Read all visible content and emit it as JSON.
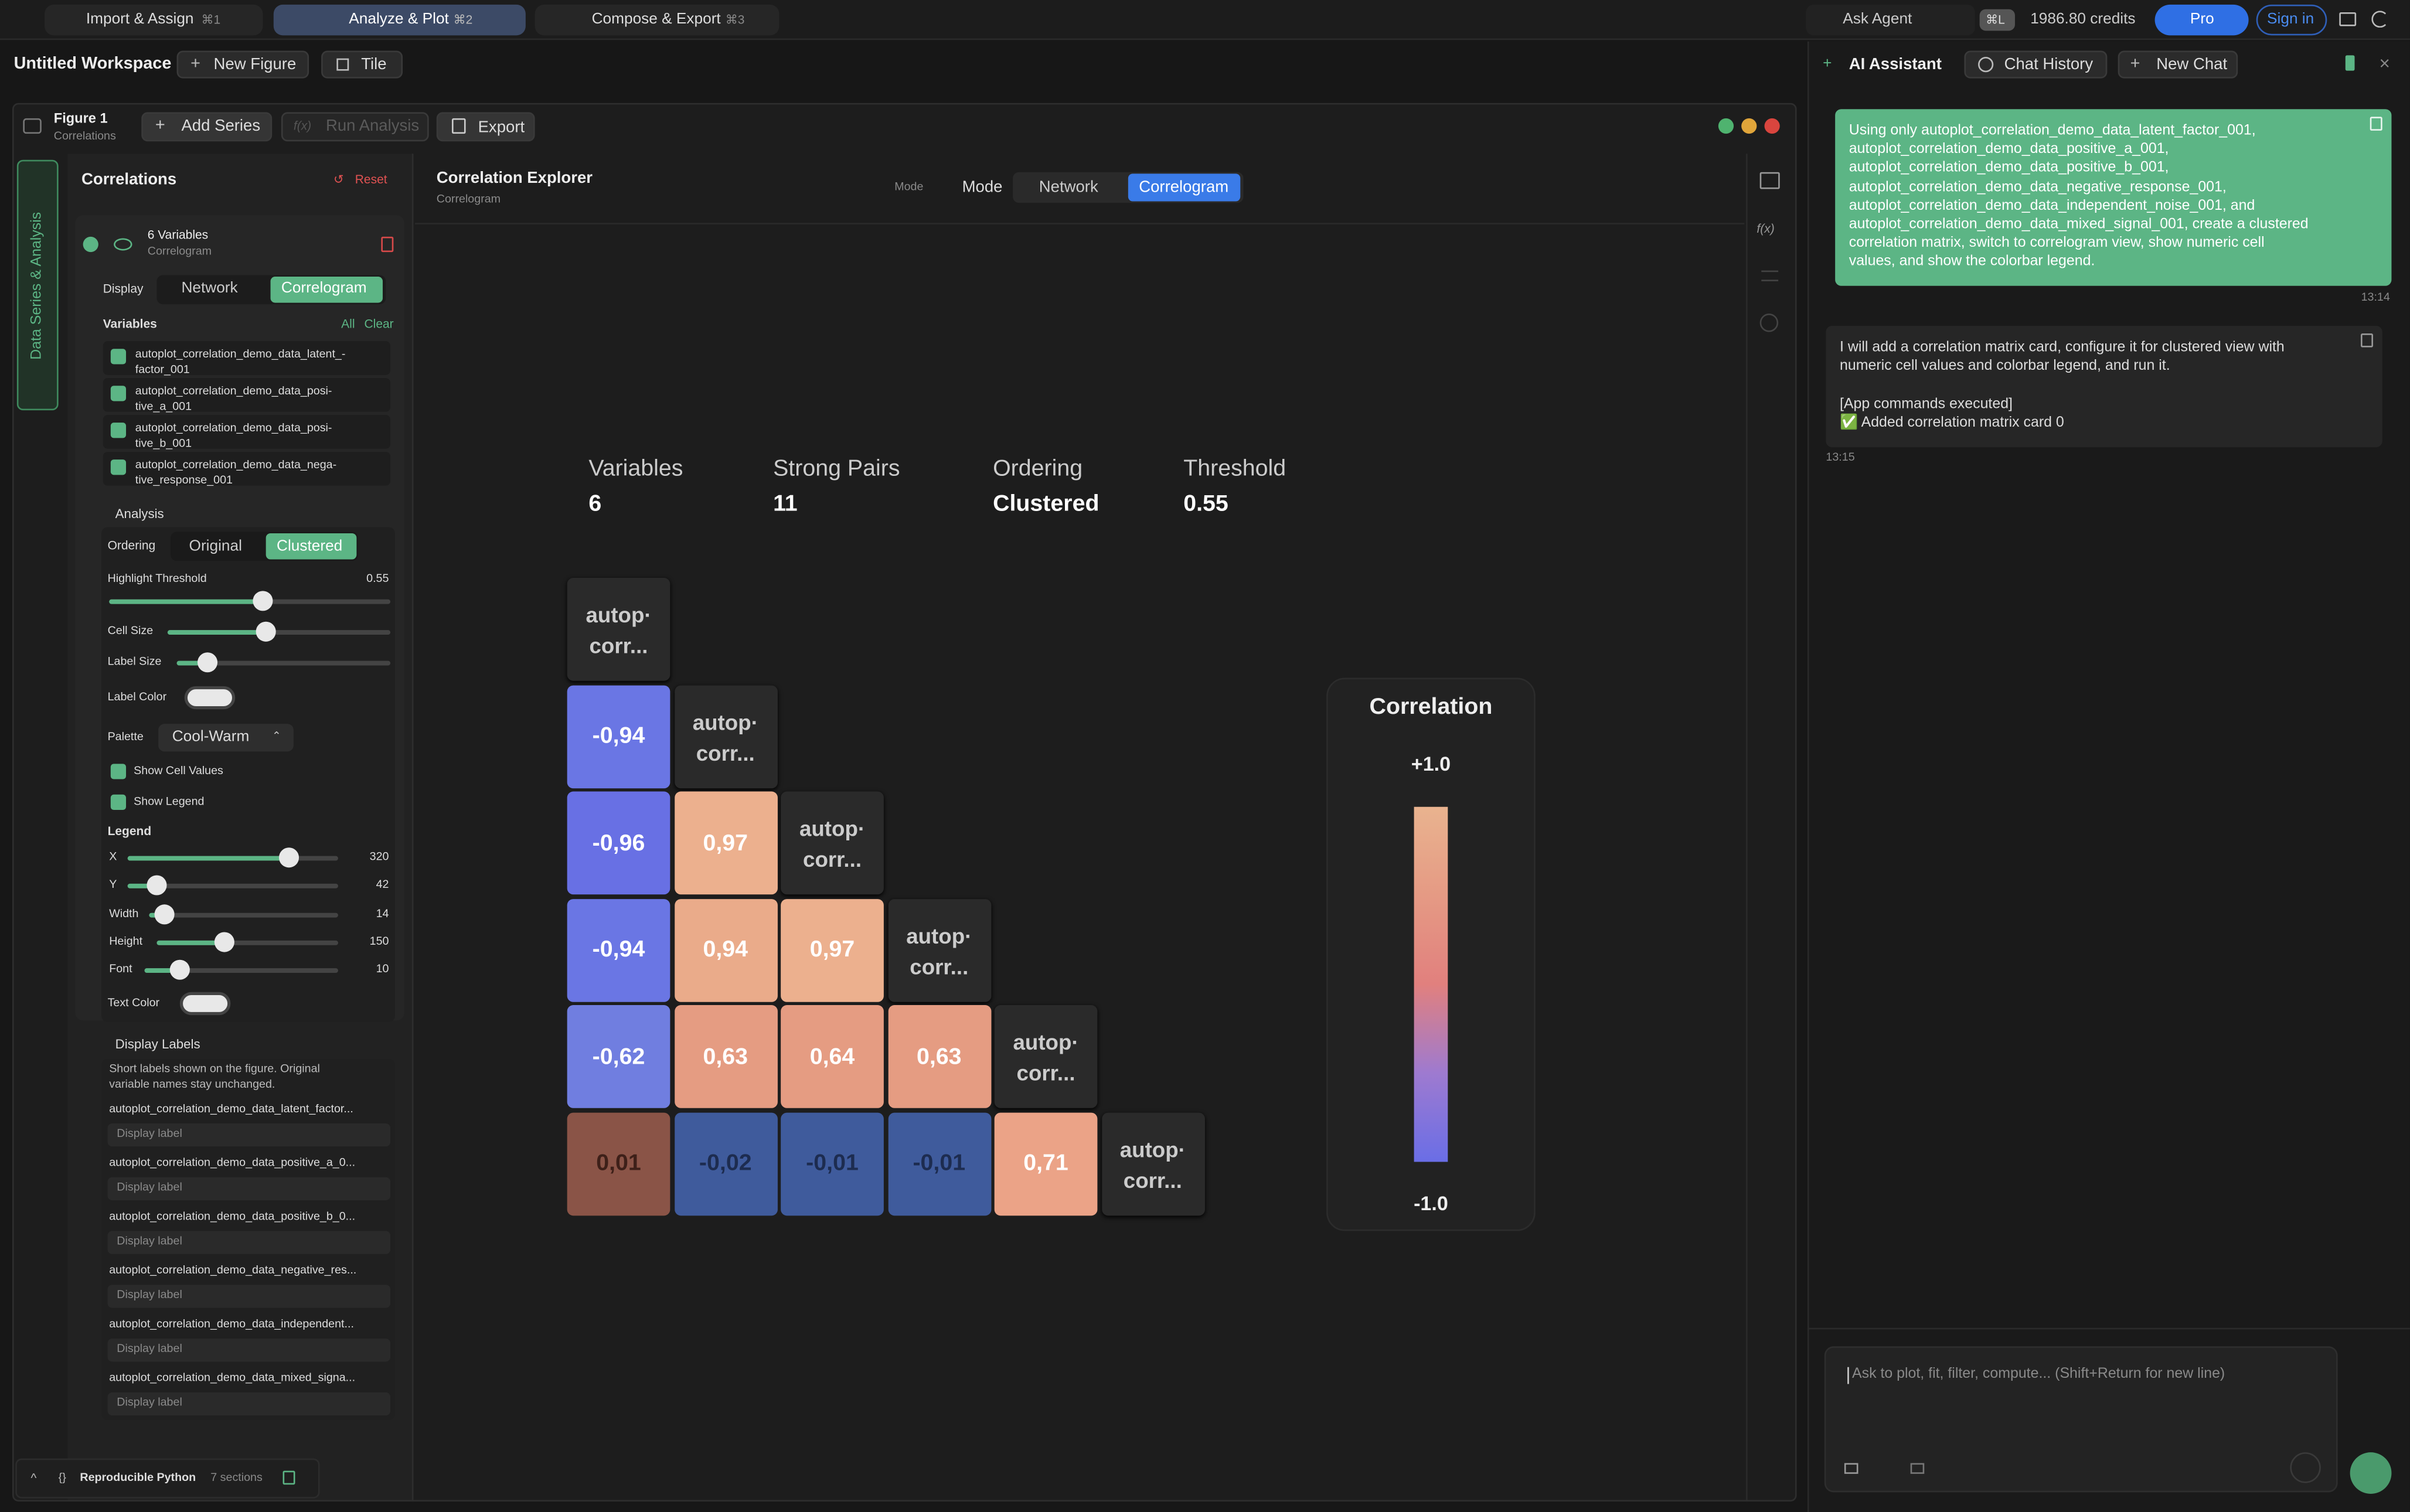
{
  "top_bar": {
    "tabs": [
      {
        "label": "Import & Assign",
        "shortcut": "⌘1"
      },
      {
        "label": "Analyze & Plot",
        "shortcut": "⌘2"
      },
      {
        "label": "Compose & Export",
        "shortcut": "⌘3"
      }
    ],
    "ask_agent": "Ask Agent",
    "agent_shortcut": "⌘L",
    "credits": "1986.80 credits",
    "pro": "Pro",
    "sign_in": "Sign in"
  },
  "workspace": {
    "title": "Untitled Workspace",
    "new_figure": "New Figure",
    "tile": "Tile"
  },
  "figure": {
    "name": "Figure 1",
    "subtitle": "Correlations",
    "add_series": "Add Series",
    "run_analysis_icon": "f(x)",
    "run_analysis": "Run Analysis",
    "export": "Export"
  },
  "sidebar": {
    "vertical_tab": "Data Series & Analysis",
    "title": "Correlations",
    "reset": "Reset",
    "series_title": "6 Variables",
    "series_subtitle": "Correlogram",
    "display_label": "Display",
    "display_options": [
      "Network",
      "Correlogram"
    ],
    "variables_label": "Variables",
    "all": "All",
    "clear": "Clear",
    "variables": [
      {
        "line1": "autoplot_correlation_demo_data_latent_-",
        "line2": "factor_001"
      },
      {
        "line1": "autoplot_correlation_demo_data_posi-",
        "line2": "tive_a_001"
      },
      {
        "line1": "autoplot_correlation_demo_data_posi-",
        "line2": "tive_b_001"
      },
      {
        "line1": "autoplot_correlation_demo_data_nega-",
        "line2": "tive_response_001"
      }
    ],
    "analysis": "Analysis",
    "ordering_label": "Ordering",
    "ordering_options": [
      "Original",
      "Clustered"
    ],
    "highlight_threshold": {
      "label": "Highlight Threshold",
      "value": "0.55"
    },
    "cell_size": "Cell Size",
    "label_size": "Label Size",
    "label_color": "Label Color",
    "palette_label": "Palette",
    "palette": "Cool-Warm",
    "show_cell_values": "Show Cell Values",
    "show_legend": "Show Legend",
    "legend_title": "Legend",
    "legend_sliders": [
      {
        "label": "X",
        "value": "320"
      },
      {
        "label": "Y",
        "value": "42"
      },
      {
        "label": "Width",
        "value": "14"
      },
      {
        "label": "Height",
        "value": "150"
      },
      {
        "label": "Font",
        "value": "10"
      }
    ],
    "text_color": "Text Color",
    "display_labels_title": "Display Labels",
    "display_labels_note": [
      "Short labels shown on the figure. Original",
      "variable names stay unchanged."
    ],
    "display_labels": [
      {
        "name": "autoplot_correlation_demo_data_latent_factor...",
        "placeholder": "Display label"
      },
      {
        "name": "autoplot_correlation_demo_data_positive_a_0...",
        "placeholder": "Display label"
      },
      {
        "name": "autoplot_correlation_demo_data_positive_b_0...",
        "placeholder": "Display label"
      },
      {
        "name": "autoplot_correlation_demo_data_negative_res...",
        "placeholder": "Display label"
      },
      {
        "name": "autoplot_correlation_demo_data_independent...",
        "placeholder": "Display label"
      },
      {
        "name": "autoplot_correlation_demo_data_mixed_signa...",
        "placeholder": "Display label"
      }
    ]
  },
  "footer": {
    "title": "Reproducible Python",
    "note": "7 sections"
  },
  "plot": {
    "title": "Correlation Explorer",
    "subtitle": "Correlogram",
    "mode_caption": "Mode",
    "mode": "Mode",
    "mode_options": [
      "Network",
      "Correlogram"
    ],
    "fx_icon": "f(x)",
    "stats": [
      {
        "label": "Variables",
        "value": "6"
      },
      {
        "label": "Strong Pairs",
        "value": "11"
      },
      {
        "label": "Ordering",
        "value": "Clustered"
      },
      {
        "label": "Threshold",
        "value": "0.55"
      }
    ],
    "matrix": {
      "rows": [
        {
          "diagonal": {
            "line1": "autop·",
            "line2": "corr..."
          },
          "cells": []
        },
        {
          "diagonal": {
            "line1": "autop·",
            "line2": "corr..."
          },
          "cells": [
            {
              "label": "-0,94",
              "color": "#6a76e4"
            }
          ]
        },
        {
          "diagonal": {
            "line1": "autop·",
            "line2": "corr..."
          },
          "cells": [
            {
              "label": "-0,96",
              "color": "#6870e4"
            },
            {
              "label": "0,97",
              "color": "#ecb08e"
            }
          ]
        },
        {
          "diagonal": {
            "line1": "autop·",
            "line2": "corr..."
          },
          "cells": [
            {
              "label": "-0,94",
              "color": "#6a76e4"
            },
            {
              "label": "0,94",
              "color": "#eaab8a"
            },
            {
              "label": "0,97",
              "color": "#ecb08e"
            }
          ]
        },
        {
          "diagonal": {
            "line1": "autop·",
            "line2": "corr..."
          },
          "cells": [
            {
              "label": "-0,62",
              "color": "#707ee0"
            },
            {
              "label": "0,63",
              "color": "#e59c82"
            },
            {
              "label": "0,64",
              "color": "#e59c82"
            },
            {
              "label": "0,63",
              "color": "#e59c82"
            }
          ]
        },
        {
          "diagonal": {
            "line1": "autop·",
            "line2": "corr..."
          },
          "cells": [
            {
              "label": "0,01",
              "color": "#8a5447",
              "text_color": "#3e2019"
            },
            {
              "label": "-0,02",
              "color": "#3f5b9c",
              "text_color": "#1d2c50"
            },
            {
              "label": "-0,01",
              "color": "#3f5b9c",
              "text_color": "#1d2c50"
            },
            {
              "label": "-0,01",
              "color": "#3f5b9c",
              "text_color": "#1d2c50"
            },
            {
              "label": "0,71",
              "color": "#eba387"
            }
          ]
        }
      ]
    },
    "colorbar": {
      "title": "Correlation",
      "max_label": "+1.0",
      "min_label": "-1.0",
      "colors": [
        "#e9b38f",
        "#e59a84",
        "#e1807e",
        "#9e7ad0",
        "#6a6ee6"
      ]
    }
  },
  "assistant": {
    "title": "AI Assistant",
    "chat_history": "Chat History",
    "new_chat": "New Chat",
    "user_message": [
      "Using only autoplot_correlation_demo_data_latent_factor_001,",
      "autoplot_correlation_demo_data_positive_a_001,",
      "autoplot_correlation_demo_data_positive_b_001,",
      "autoplot_correlation_demo_data_negative_response_001,",
      "autoplot_correlation_demo_data_independent_noise_001, and",
      "autoplot_correlation_demo_data_mixed_signal_001, create a clustered",
      "correlation matrix, switch to correlogram view, show numeric cell",
      "values, and show the colorbar legend."
    ],
    "user_time": "13:14",
    "reply": [
      "I will add a correlation matrix card, configure it for clustered view with",
      "numeric cell values and colorbar legend, and run it.",
      "[App commands executed]",
      "✅ Added correlation matrix card 0"
    ],
    "reply_time": "13:15",
    "input_placeholder": "Ask to plot, fit, filter, compute... (Shift+Return for new line)"
  }
}
